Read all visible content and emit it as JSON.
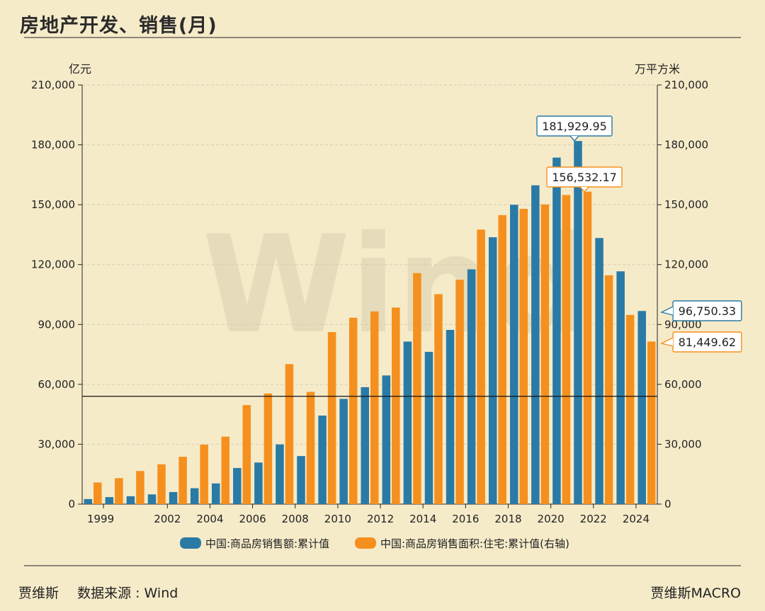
{
  "title": "房地产开发、销售(月)",
  "footer": {
    "author": "贾维斯",
    "source": "数据来源 : Wind",
    "brand": "贾维斯MACRO"
  },
  "colors": {
    "blue": "#2a7aa6",
    "orange": "#f5901e",
    "background": "#f6ebc9"
  },
  "watermark": "Wind",
  "chart_data": {
    "type": "bar",
    "left_unit": "亿元",
    "right_unit": "万平方米",
    "ylim": [
      0,
      210000
    ],
    "y_ticks": [
      "0",
      "30,000",
      "60,000",
      "90,000",
      "120,000",
      "150,000",
      "180,000",
      "210,000"
    ],
    "y_tick_values": [
      0,
      30000,
      60000,
      90000,
      120000,
      150000,
      180000,
      210000
    ],
    "x_tick_labels": [
      "1999",
      "2002",
      "2004",
      "2006",
      "2008",
      "2010",
      "2012",
      "2014",
      "2016",
      "2018",
      "2020",
      "2022",
      "2024"
    ],
    "x_tick_years": [
      1999,
      2002,
      2004,
      2006,
      2008,
      2010,
      2012,
      2014,
      2016,
      2018,
      2020,
      2022,
      2024
    ],
    "categories": [
      1998,
      1999,
      2000,
      2001,
      2002,
      2003,
      2004,
      2005,
      2006,
      2007,
      2008,
      2009,
      2010,
      2011,
      2012,
      2013,
      2014,
      2015,
      2016,
      2017,
      2018,
      2019,
      2020,
      2021,
      2022,
      2023,
      2024
    ],
    "series": [
      {
        "name": "中国:商品房销售额:累计值",
        "axis": "left",
        "color": "#2a7aa6",
        "values": [
          2513,
          3500,
          3935,
          4863,
          6032,
          7956,
          10376,
          18080,
          20826,
          29889,
          24071,
          44355,
          52721,
          58589,
          64456,
          81428,
          76292,
          87281,
          117627,
          133701,
          149973,
          159725,
          173613,
          181930,
          133308,
          116622,
          96750
        ]
      },
      {
        "name": "中国:商品房销售面积:住宅:累计值(右轴)",
        "axis": "right",
        "color": "#f5901e",
        "values": [
          10827,
          12998,
          16570,
          19939,
          23702,
          29779,
          33820,
          49588,
          55423,
          70136,
          56222,
          86185,
          93377,
          96528,
          98468,
          115723,
          105188,
          112412,
          137540,
          144789,
          147929,
          150144,
          154878,
          156532,
          114631,
          94796,
          81450
        ]
      }
    ],
    "reference_line": 54000,
    "callouts": [
      {
        "label": "181,929.95",
        "series": 0,
        "color": "#2a7aa6"
      },
      {
        "label": "156,532.17",
        "series": 1,
        "color": "#f5901e"
      },
      {
        "label": "96,750.33",
        "series": 0,
        "color": "#2a7aa6"
      },
      {
        "label": "81,449.62",
        "series": 1,
        "color": "#f5901e"
      }
    ],
    "legend": [
      {
        "label": "中国:商品房销售额:累计值",
        "color": "#2a7aa6"
      },
      {
        "label": "中国:商品房销售面积:住宅:累计值(右轴)",
        "color": "#f5901e"
      }
    ]
  }
}
